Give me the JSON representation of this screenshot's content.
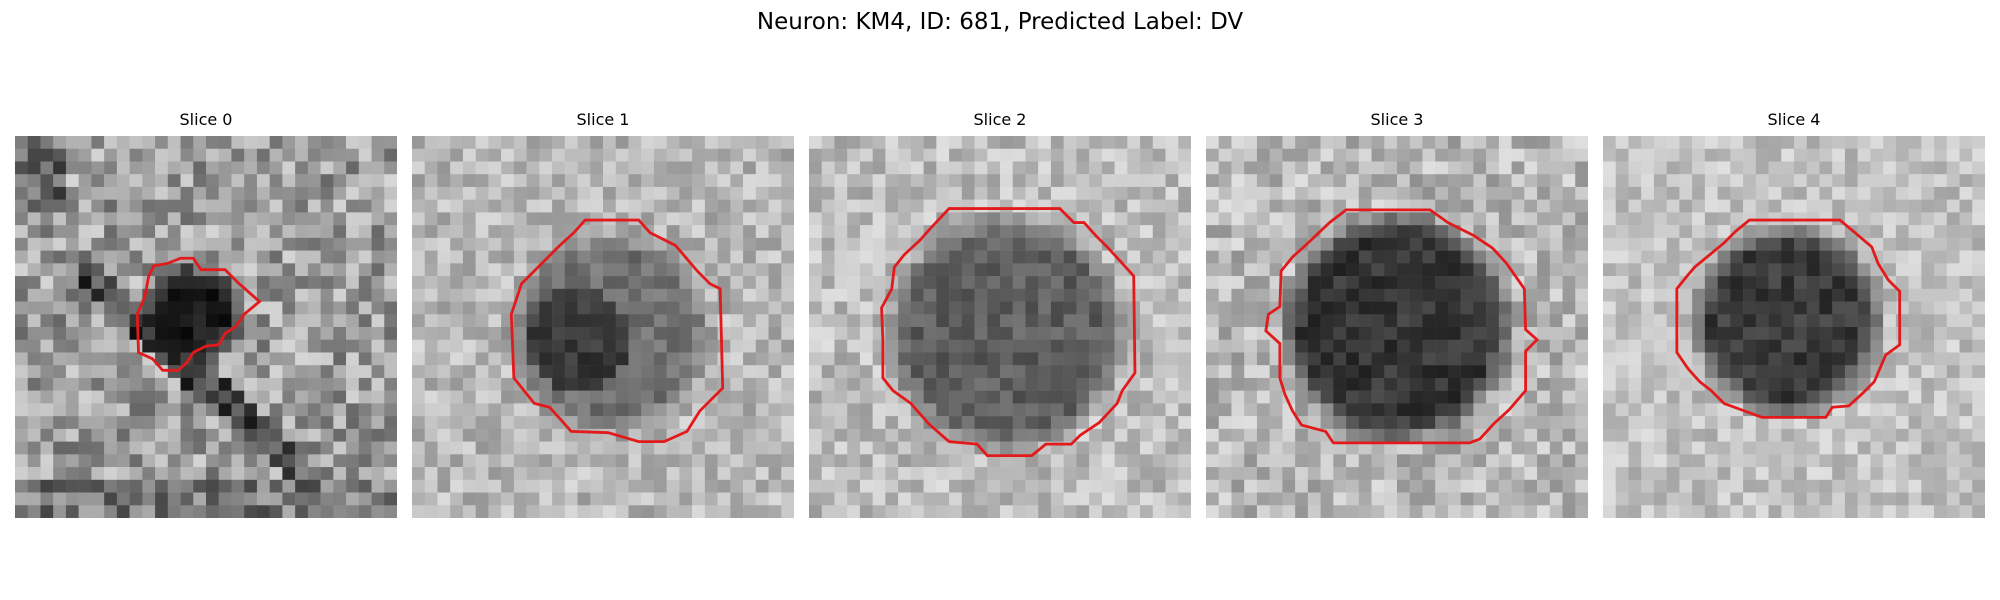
{
  "figure": {
    "title": "Neuron: KM4, ID: 681, Predicted Label: DV",
    "panels": [
      {
        "title": "Slice 0"
      },
      {
        "title": "Slice 1"
      },
      {
        "title": "Slice 2"
      },
      {
        "title": "Slice 3"
      },
      {
        "title": "Slice 4"
      }
    ],
    "contour_color": "#e31a1c",
    "colormap": "grayscale"
  }
}
